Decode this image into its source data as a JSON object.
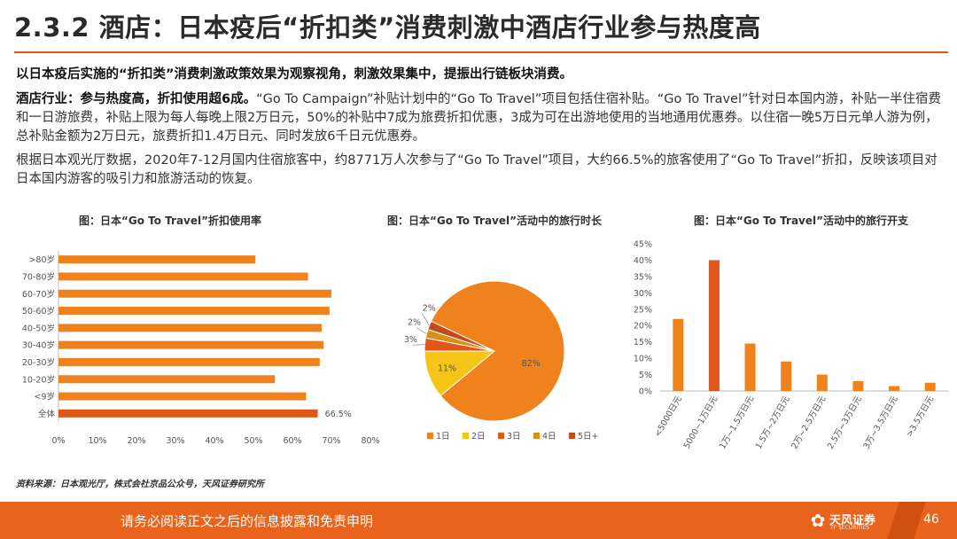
{
  "title": "2.3.2 酒店：日本疫后“折扣类”消费刺激中酒店行业参与热度高",
  "paragraphs": {
    "p1": "以日本疫后实施的“折扣类”消费刺激政策效果为观察视角，刺激效果集中，提振出行链板块消费。",
    "p2_bold": "酒店行业：参与热度高，折扣使用超6成。",
    "p2_rest": "“Go To Campaign”补贴计划中的“Go To Travel”项目包括住宿补贴。“Go To Travel”针对日本国内游，补贴一半住宿费和一日游旅费，补贴上限为每人每晚上限2万日元，50%的补贴中7成为旅费折扣优惠，3成为可在出游地使用的当地通用优惠券。以住宿一晚5万日元单人游为例，总补贴金额为2万日元，旅费折扣1.4万日元、同时发放6千日元优惠券。",
    "p3": "根据日本观光厅数据，2020年7-12月国内住宿旅客中，约8771万人次参与了“Go To Travel”项目，大约66.5%的旅客使用了“Go To Travel”折扣，反映该项目对日本国内游客的吸引力和旅游活动的恢复。"
  },
  "chart_data": [
    {
      "type": "bar",
      "orientation": "horizontal",
      "title": "图：日本“Go To Travel”折扣使用率",
      "categories": [
        ">80岁",
        "70-80岁",
        "60-70岁",
        "50-60岁",
        "40-50岁",
        "30-40岁",
        "20-30岁",
        "10-20岁",
        "<9岁",
        "全体"
      ],
      "values": [
        50.5,
        64,
        70,
        69.5,
        67.5,
        68,
        67,
        55.5,
        63.5,
        66.5
      ],
      "data_labels": {
        "全体": "66.5%"
      },
      "xticks": [
        "0%",
        "10%",
        "20%",
        "30%",
        "40%",
        "50%",
        "60%",
        "70%",
        "80%"
      ],
      "xlim": [
        0,
        80
      ],
      "colors": {
        "bar": "#f0821e",
        "highlight": "#e0571c"
      }
    },
    {
      "type": "pie",
      "title": "图：日本“Go To Travel”活动中的旅行时长",
      "labels": [
        "1日",
        "2日",
        "3日",
        "4日",
        "5日+"
      ],
      "values": [
        82,
        11,
        3,
        2,
        2
      ],
      "value_labels": [
        "82%",
        "11%",
        "3%",
        "2%",
        "2%"
      ],
      "colors": [
        "#f0821e",
        "#f5c518",
        "#e0571c",
        "#d99016",
        "#c54a1a"
      ],
      "legend_position": "bottom"
    },
    {
      "type": "bar",
      "title": "图：日本“Go To Travel”活动中的旅行开支",
      "categories": [
        "<5000日元",
        "5000~1万日元",
        "1万~1.5万日元",
        "1.5万~2万日元",
        "2万~2.5万日元",
        "2.5万~3万日元",
        "3万~3.5万日元",
        ">3.5万日元"
      ],
      "values": [
        22,
        40,
        14.5,
        9,
        5,
        3,
        1.5,
        2.5
      ],
      "yticks": [
        "0%",
        "5%",
        "10%",
        "15%",
        "20%",
        "25%",
        "30%",
        "35%",
        "40%",
        "45%"
      ],
      "ylim": [
        0,
        45
      ],
      "colors": {
        "bar": "#f0821e",
        "highlight": "#e0571c"
      }
    }
  ],
  "source": "资料来源：日本观光厅，株式会社京品公众号，天风证券研究所",
  "footer": {
    "disclaimer": "请务必阅读正文之后的信息披露和免责申明",
    "logo_name": "天风证券",
    "logo_en": "TF SECURITIES",
    "logo_icon": "tf-flower-icon",
    "page": "46"
  }
}
